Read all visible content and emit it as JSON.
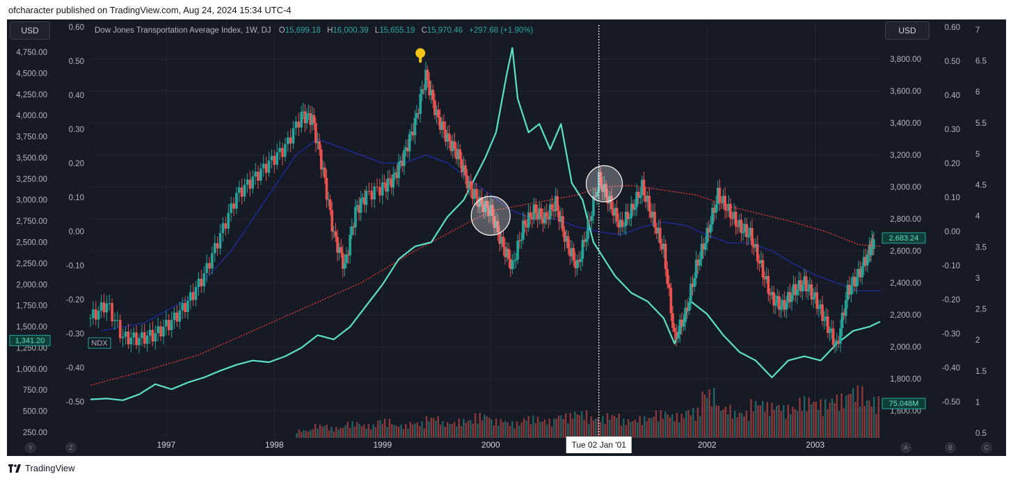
{
  "header": {
    "published": "ofcharacter published on TradingView.com, Aug 24, 2024 15:34 UTC-4"
  },
  "footer": {
    "brand": "TradingView"
  },
  "buttons": {
    "usd_left": "USD",
    "usd_right": "USD"
  },
  "nav": {
    "y": "Y",
    "z": "Z",
    "a": "A",
    "b": "B",
    "c": "C"
  },
  "colors": {
    "background": "#161a25",
    "up": "#26a69a",
    "down": "#ef5350",
    "ndx_line": "#5ce1c6",
    "ma_blue": "#1d2a8c",
    "ma_red": "#e53935",
    "grid": "#232734"
  },
  "chart_data": {
    "type": "line",
    "legend": {
      "title": "Dow Jones Transportation Average Index, 1W, DJ",
      "o_label": "O",
      "o": "15,699.18",
      "h_label": "H",
      "h": "16,000.39",
      "l_label": "L",
      "l": "15,655.19",
      "c_label": "C",
      "c": "15,970.46",
      "chg": "+297.68 (+1.90%)"
    },
    "x_ticks": [
      "1997",
      "1998",
      "1999",
      "2000",
      "2002",
      "2003"
    ],
    "x_tick_years": [
      1997,
      1998,
      1999,
      2000,
      2002,
      2003
    ],
    "x_range": [
      1996.3,
      2003.6
    ],
    "crosshair": {
      "x": 2001.0,
      "label": "Tue 02 Jan '01"
    },
    "axis_left_price": {
      "ticks": [
        "4,750.00",
        "4,500.00",
        "4,250.00",
        "4,000.00",
        "3,750.00",
        "3,500.00",
        "3,250.00",
        "3,000.00",
        "2,750.00",
        "2,500.00",
        "2,250.00",
        "2,000.00",
        "1,750.00",
        "1,500.00",
        "1,250.00",
        "1,000.00",
        "750.00",
        "500.00",
        "250.00"
      ],
      "tick_values": [
        4750,
        4500,
        4250,
        4000,
        3750,
        3500,
        3250,
        3000,
        2750,
        2500,
        2250,
        2000,
        1750,
        1500,
        1250,
        1000,
        750,
        500,
        250
      ],
      "range": [
        250,
        4750
      ],
      "ndx_label": "NDX",
      "current_label": "1,341.20",
      "current_value": 1341.2
    },
    "axis_left_osc": {
      "ticks": [
        "0.60",
        "0.50",
        "0.40",
        "0.30",
        "0.20",
        "0.10",
        "0.00",
        "-0.10",
        "-0.20",
        "-0.30",
        "-0.40",
        "-0.50"
      ],
      "tick_values": [
        0.6,
        0.5,
        0.4,
        0.3,
        0.2,
        0.1,
        0.0,
        -0.1,
        -0.2,
        -0.3,
        -0.4,
        -0.5
      ],
      "range": [
        -0.5,
        0.6
      ]
    },
    "axis_right_price": {
      "ticks": [
        "3,800.00",
        "3,600.00",
        "3,400.00",
        "3,200.00",
        "3,000.00",
        "2,800.00",
        "2,600.00",
        "2,400.00",
        "2,200.00",
        "2,000.00",
        "1,800.00",
        "1,600.00"
      ],
      "tick_values": [
        3800,
        3600,
        3400,
        3200,
        3000,
        2800,
        2600,
        2400,
        2200,
        2000,
        1800,
        1600
      ],
      "range": [
        1600,
        3800
      ],
      "current_label": "2,683.24",
      "current_value": 2683.24,
      "volume_label": "75.048M"
    },
    "axis_right_osc": {
      "ticks": [
        "0.60",
        "0.50",
        "0.40",
        "0.30",
        "0.20",
        "0.10",
        "0.00",
        "-0.10",
        "-0.20",
        "-0.30",
        "-0.40",
        "-0.50"
      ],
      "tick_values": [
        0.6,
        0.5,
        0.4,
        0.3,
        0.2,
        0.1,
        0.0,
        -0.1,
        -0.2,
        -0.3,
        -0.4,
        -0.5
      ],
      "range": [
        -0.5,
        0.6
      ]
    },
    "axis_right_scale": {
      "ticks": [
        "7",
        "6.5",
        "6",
        "5.5",
        "5",
        "4.5",
        "4",
        "3.5",
        "3",
        "2.5",
        "2",
        "1.5",
        "1",
        "0.5"
      ],
      "tick_values": [
        7,
        6.5,
        6,
        5.5,
        5,
        4.5,
        4,
        3.5,
        3,
        2.5,
        2,
        1.5,
        1,
        0.5
      ],
      "range": [
        0.5,
        7
      ]
    },
    "series": [
      {
        "key": "transports",
        "type": "candlestick",
        "axis": "right_price",
        "x": [
          1996.3,
          1996.45,
          1996.6,
          1996.75,
          1996.9,
          1997.05,
          1997.2,
          1997.35,
          1997.5,
          1997.65,
          1997.8,
          1997.95,
          1998.1,
          1998.25,
          1998.35,
          1998.45,
          1998.55,
          1998.65,
          1998.75,
          1998.85,
          1999.0,
          1999.1,
          1999.2,
          1999.3,
          1999.4,
          1999.5,
          1999.6,
          1999.7,
          1999.8,
          1999.9,
          2000.0,
          2000.1,
          2000.2,
          2000.3,
          2000.4,
          2000.5,
          2000.6,
          2000.7,
          2000.8,
          2000.9,
          2001.0,
          2001.1,
          2001.2,
          2001.3,
          2001.4,
          2001.5,
          2001.6,
          2001.7,
          2001.8,
          2001.9,
          2002.0,
          2002.1,
          2002.2,
          2002.3,
          2002.4,
          2002.5,
          2002.6,
          2002.7,
          2002.8,
          2002.9,
          2003.0,
          2003.1,
          2003.2,
          2003.3,
          2003.4,
          2003.5,
          2003.55
        ],
        "values": [
          2180,
          2270,
          2060,
          2050,
          2080,
          2160,
          2280,
          2450,
          2700,
          2950,
          3050,
          3150,
          3250,
          3450,
          3430,
          3100,
          2700,
          2500,
          2850,
          2950,
          3000,
          3050,
          3200,
          3400,
          3700,
          3450,
          3300,
          3200,
          3000,
          2900,
          2850,
          2650,
          2500,
          2750,
          2850,
          2800,
          2900,
          2650,
          2500,
          2750,
          3050,
          2900,
          2750,
          2850,
          3000,
          2800,
          2600,
          2050,
          2200,
          2500,
          2700,
          2950,
          2850,
          2750,
          2700,
          2500,
          2300,
          2250,
          2350,
          2400,
          2300,
          2150,
          2000,
          2350,
          2450,
          2600,
          2680
        ]
      },
      {
        "key": "ndx",
        "name": "NDX",
        "type": "line",
        "axis": "left_price",
        "x": [
          1996.3,
          1996.45,
          1996.6,
          1996.75,
          1996.9,
          1997.05,
          1997.2,
          1997.35,
          1997.5,
          1997.65,
          1997.8,
          1997.95,
          1998.1,
          1998.25,
          1998.4,
          1998.55,
          1998.7,
          1998.85,
          1999.0,
          1999.15,
          1999.3,
          1999.45,
          1999.6,
          1999.75,
          1999.85,
          1999.95,
          2000.05,
          2000.15,
          2000.2,
          2000.25,
          2000.35,
          2000.45,
          2000.55,
          2000.65,
          2000.75,
          2000.85,
          2000.95,
          2001.05,
          2001.15,
          2001.3,
          2001.45,
          2001.6,
          2001.7,
          2001.85,
          2002.0,
          2002.15,
          2002.3,
          2002.45,
          2002.6,
          2002.75,
          2002.9,
          2003.05,
          2003.2,
          2003.35,
          2003.5,
          2003.6
        ],
        "values": [
          640,
          650,
          630,
          700,
          820,
          760,
          840,
          900,
          980,
          1050,
          1100,
          1080,
          1150,
          1250,
          1400,
          1350,
          1500,
          1750,
          2000,
          2300,
          2450,
          2500,
          2800,
          3000,
          3250,
          3500,
          3800,
          4500,
          4800,
          4200,
          3800,
          3900,
          3600,
          3900,
          3200,
          3000,
          2500,
          2300,
          2100,
          1900,
          1800,
          1600,
          1300,
          1800,
          1650,
          1400,
          1200,
          1100,
          900,
          1100,
          1150,
          1100,
          1300,
          1450,
          1500,
          1560
        ]
      },
      {
        "key": "ma_blue",
        "type": "line",
        "axis": "right_price",
        "x": [
          1996.4,
          1996.8,
          1997.2,
          1997.6,
          1998.0,
          1998.2,
          1998.4,
          1998.6,
          1998.8,
          1999.0,
          1999.2,
          1999.4,
          1999.6,
          1999.8,
          2000.0,
          2000.2,
          2000.4,
          2000.6,
          2000.8,
          2001.0,
          2001.2,
          2001.4,
          2001.6,
          2001.8,
          2002.0,
          2002.2,
          2002.4,
          2002.6,
          2002.8,
          2003.0,
          2003.2,
          2003.4,
          2003.6
        ],
        "values": [
          2100,
          2150,
          2300,
          2600,
          3000,
          3200,
          3300,
          3250,
          3200,
          3150,
          3150,
          3200,
          3150,
          3050,
          2950,
          2850,
          2800,
          2800,
          2750,
          2720,
          2700,
          2750,
          2780,
          2760,
          2700,
          2650,
          2650,
          2600,
          2520,
          2450,
          2400,
          2350,
          2350
        ]
      },
      {
        "key": "ma_red",
        "type": "line",
        "axis": "right_price",
        "x": [
          1996.3,
          1996.8,
          1997.3,
          1997.8,
          1998.3,
          1998.8,
          1999.3,
          1999.8,
          2000.0,
          2000.4,
          2000.8,
          2001.0,
          2001.3,
          2001.6,
          2001.9,
          2002.2,
          2002.5,
          2002.8,
          2003.1,
          2003.4,
          2003.6
        ],
        "values": [
          1760,
          1850,
          1950,
          2100,
          2250,
          2400,
          2600,
          2780,
          2850,
          2900,
          2950,
          3000,
          3010,
          2980,
          2950,
          2880,
          2830,
          2780,
          2720,
          2640,
          2630
        ]
      },
      {
        "key": "volume",
        "type": "bar",
        "x_range": [
          1998.2,
          2003.6
        ],
        "values": [
          0.3,
          0.5,
          0.4,
          0.6,
          0.5,
          0.7,
          0.5,
          0.6,
          0.8,
          0.6,
          0.7,
          0.9,
          0.7,
          0.6,
          0.8,
          0.7,
          0.9,
          1.0,
          0.8,
          0.9,
          0.7,
          0.8,
          1.0,
          0.9,
          1.1,
          1.8,
          1.2,
          1.0,
          1.4,
          1.3,
          1.2,
          1.5,
          1.4,
          1.6,
          1.9,
          1.5
        ]
      }
    ],
    "annotations": {
      "circle_1": {
        "x": 2000.0,
        "price": 2820
      },
      "circle_2": {
        "x": 2001.05,
        "price": 3020
      },
      "pointer": {
        "x": 1999.35,
        "price": 3820
      }
    }
  }
}
